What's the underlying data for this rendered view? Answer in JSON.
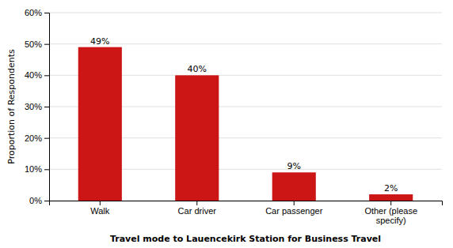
{
  "chart_data": {
    "type": "bar",
    "categories": [
      "Walk",
      "Car driver",
      "Car passenger",
      "Other (please\nspecify)"
    ],
    "values": [
      49,
      40,
      9,
      2
    ],
    "value_labels": [
      "49%",
      "40%",
      "9%",
      "2%"
    ],
    "data_labels": true,
    "color": "#cc1515",
    "xlabel": "Travel mode to Lauencekirk Station for Business Travel",
    "ylabel": "Proportion of Respondents",
    "ylim": [
      0,
      60
    ],
    "yticks": [
      {
        "value": 0,
        "label": "0%"
      },
      {
        "value": 10,
        "label": "10%"
      },
      {
        "value": 20,
        "label": "20%"
      },
      {
        "value": 30,
        "label": "30%"
      },
      {
        "value": 40,
        "label": "40%"
      },
      {
        "value": 50,
        "label": "50%"
      },
      {
        "value": 60,
        "label": "60%"
      }
    ],
    "grid": true
  }
}
